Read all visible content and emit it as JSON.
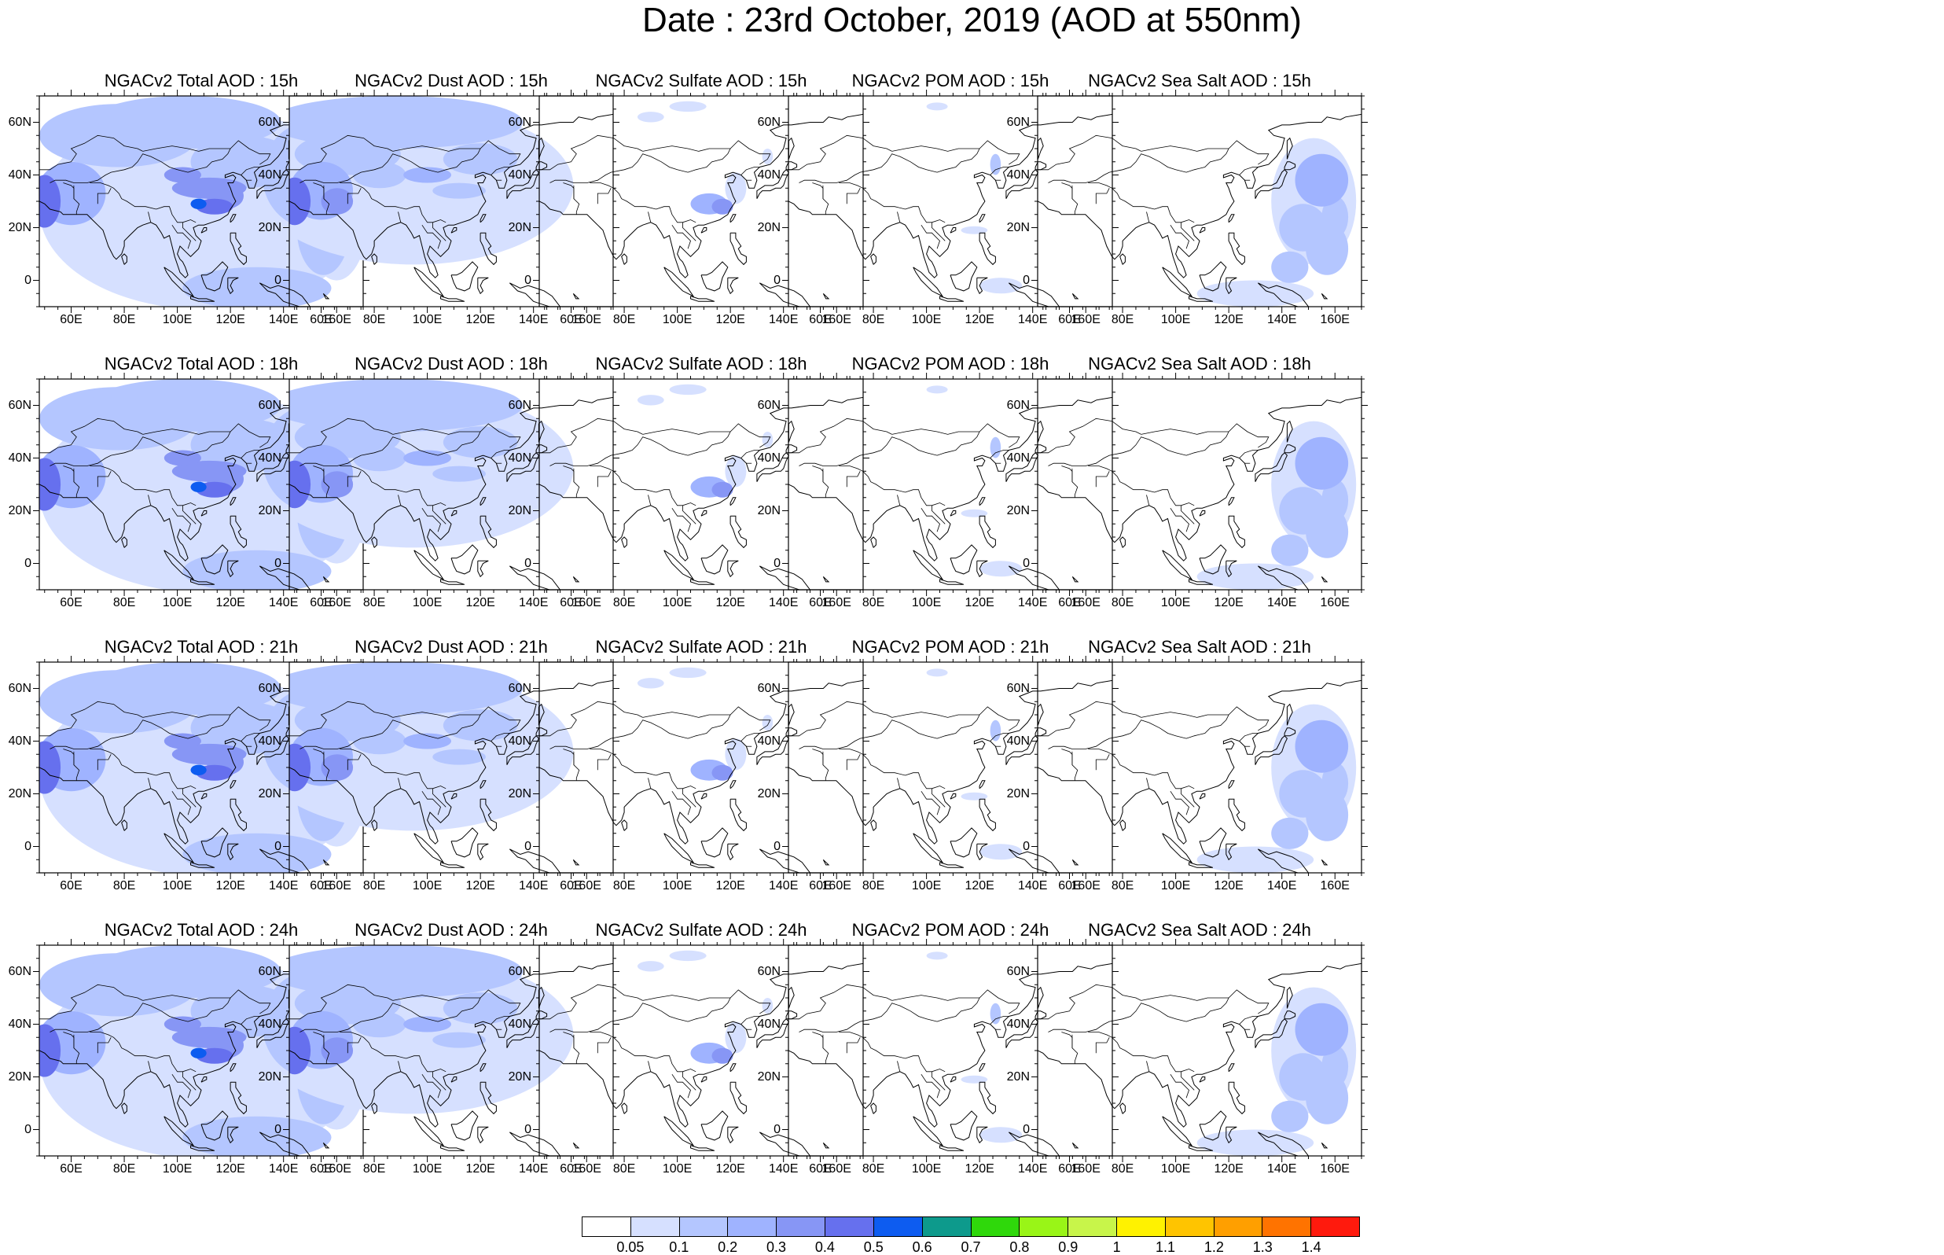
{
  "title": "Date : 23rd October, 2019 (AOD at 550nm)",
  "map_axes": {
    "lat_labels": [
      "60N",
      "40N",
      "20N",
      "0"
    ],
    "lat_values": [
      60,
      40,
      20,
      0
    ],
    "lon_labels": [
      "60E",
      "80E",
      "100E",
      "120E",
      "140E",
      "160E"
    ],
    "lon_values": [
      60,
      80,
      100,
      120,
      140,
      160
    ],
    "lon_range": [
      48,
      170
    ],
    "lat_range": [
      -10,
      70
    ]
  },
  "panels": [
    {
      "title": "NGACv2 Total AOD : 15h",
      "species": "total"
    },
    {
      "title": "NGACv2 Dust AOD : 15h",
      "species": "dust"
    },
    {
      "title": "NGACv2 Sulfate AOD : 15h",
      "species": "sulfate"
    },
    {
      "title": "NGACv2 POM AOD : 15h",
      "species": "pom"
    },
    {
      "title": "NGACv2 Sea Salt AOD : 15h",
      "species": "seasalt"
    },
    {
      "title": "NGACv2 Total AOD : 18h",
      "species": "total"
    },
    {
      "title": "NGACv2 Dust AOD : 18h",
      "species": "dust"
    },
    {
      "title": "NGACv2 Sulfate AOD : 18h",
      "species": "sulfate"
    },
    {
      "title": "NGACv2 POM AOD : 18h",
      "species": "pom"
    },
    {
      "title": "NGACv2 Sea Salt AOD : 18h",
      "species": "seasalt"
    },
    {
      "title": "NGACv2 Total AOD : 21h",
      "species": "total"
    },
    {
      "title": "NGACv2 Dust AOD : 21h",
      "species": "dust"
    },
    {
      "title": "NGACv2 Sulfate AOD : 21h",
      "species": "sulfate"
    },
    {
      "title": "NGACv2 POM AOD : 21h",
      "species": "pom"
    },
    {
      "title": "NGACv2 Sea Salt AOD : 21h",
      "species": "seasalt"
    },
    {
      "title": "NGACv2 Total AOD : 24h",
      "species": "total"
    },
    {
      "title": "NGACv2 Dust AOD : 24h",
      "species": "dust"
    },
    {
      "title": "NGACv2 Sulfate AOD : 24h",
      "species": "sulfate"
    },
    {
      "title": "NGACv2 POM AOD : 24h",
      "species": "pom"
    },
    {
      "title": "NGACv2 Sea Salt  AOD : 24h",
      "species": "seasalt"
    }
  ],
  "colorbar": {
    "labels": [
      "0.05",
      "0.1",
      "0.2",
      "0.3",
      "0.4",
      "0.5",
      "0.6",
      "0.7",
      "0.8",
      "0.9",
      "1",
      "1.1",
      "1.2",
      "1.3",
      "1.4"
    ],
    "colors": [
      "#ffffff",
      "#d6e0ff",
      "#b4c6ff",
      "#9fb3ff",
      "#8796f5",
      "#6670ee",
      "#0d5cf0",
      "#0d9a8c",
      "#2fd80b",
      "#99f517",
      "#c8f54a",
      "#fff200",
      "#ffc400",
      "#ff9f00",
      "#ff7300",
      "#ff1a0d"
    ]
  }
}
